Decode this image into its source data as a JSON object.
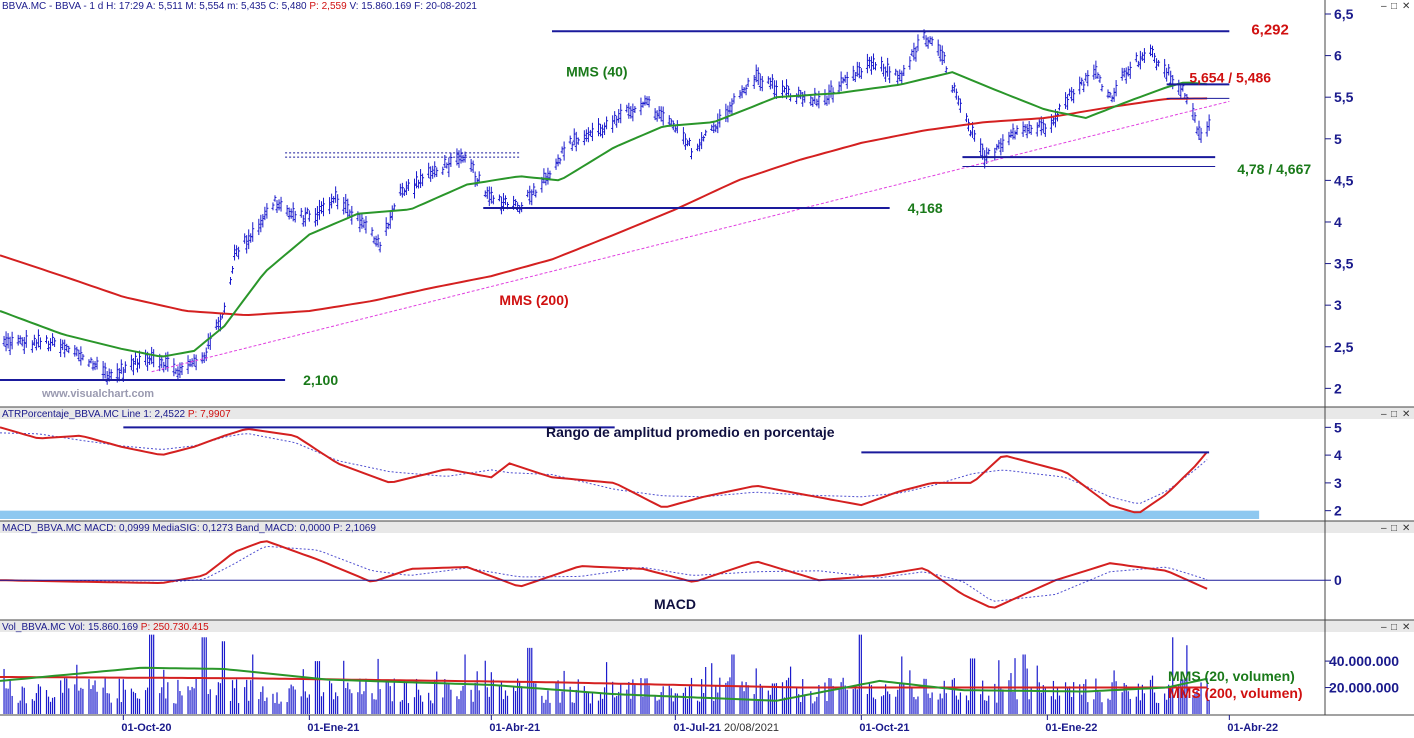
{
  "panels": {
    "price": {
      "header": "BBVA.MC - BBVA - 1 d H: 17:29 A: 5,511 M: 5,554 m: 5,435 C: 5,480",
      "header_red": "P: 2,559",
      "header_tail": "V: 15.860.169 F: 20-08-2021",
      "watermark": "www.visualchart.com"
    },
    "atr": {
      "header": "ATRPorcentaje_BBVA.MC Line 1: 2,4522",
      "header_red": "P: 7,9907",
      "title": "Rango de amplitud promedio en porcentaje"
    },
    "macd": {
      "header": "MACD_BBVA.MC MACD: 0,0999 MediaSIG: 0,1273 Band_MACD: 0,0000 P: 2,1069",
      "title": "MACD"
    },
    "volume": {
      "header": "Vol_BBVA.MC Vol: 15.860.169",
      "header_red": "P: 250.730.415"
    }
  },
  "window_buttons": [
    "–",
    "□",
    "✕"
  ],
  "colors": {
    "bars": "#1a1acc",
    "mms40": "#2a962a",
    "mms200": "#d42020",
    "trendline": "#e040e0",
    "levels": "#1a1a9c",
    "atr_band": "#8ec8f0"
  },
  "chart_data": [
    {
      "type": "ohlc",
      "series": [
        {
          "name": "BBVA.MC"
        },
        {
          "name": "MMS (40)"
        },
        {
          "name": "MMS (200)"
        }
      ],
      "ylim": [
        1.8,
        6.5
      ],
      "y_ticks": [
        "6,5",
        "6",
        "5,5",
        "5",
        "4,5",
        "4",
        "3,5",
        "3",
        "2,5",
        "2"
      ],
      "y_tick_values": [
        6.5,
        6,
        5.5,
        5,
        4.5,
        4,
        3.5,
        3,
        2.5,
        2
      ],
      "x_ticks": [
        "01-Oct-20",
        "01-Ene-21",
        "01-Abr-21",
        "01-Jul-21",
        "01-Oct-21",
        "01-Ene-22",
        "01-Abr-22"
      ],
      "cursor_date": "20/08/2021",
      "price_path": [
        [
          "2020-08-01",
          2.55
        ],
        [
          "2020-08-25",
          2.55
        ],
        [
          "2020-09-10",
          2.4
        ],
        [
          "2020-09-25",
          2.15
        ],
        [
          "2020-10-15",
          2.4
        ],
        [
          "2020-10-29",
          2.2
        ],
        [
          "2020-11-10",
          2.4
        ],
        [
          "2020-11-20",
          2.95
        ],
        [
          "2020-11-25",
          3.6
        ],
        [
          "2020-12-05",
          3.9
        ],
        [
          "2020-12-15",
          4.25
        ],
        [
          "2020-12-25",
          4.05
        ],
        [
          "2021-01-05",
          4.1
        ],
        [
          "2021-01-15",
          4.3
        ],
        [
          "2021-01-30",
          3.9
        ],
        [
          "2021-02-05",
          3.75
        ],
        [
          "2021-02-15",
          4.35
        ],
        [
          "2021-03-10",
          4.7
        ],
        [
          "2021-03-20",
          4.75
        ],
        [
          "2021-03-30",
          4.3
        ],
        [
          "2021-04-15",
          4.2
        ],
        [
          "2021-04-25",
          4.45
        ],
        [
          "2021-05-10",
          4.95
        ],
        [
          "2021-06-01",
          5.2
        ],
        [
          "2021-06-15",
          5.45
        ],
        [
          "2021-06-30",
          5.15
        ],
        [
          "2021-07-10",
          4.85
        ],
        [
          "2021-07-20",
          5.15
        ],
        [
          "2021-08-10",
          5.75
        ],
        [
          "2021-08-25",
          5.55
        ],
        [
          "2021-09-10",
          5.45
        ],
        [
          "2021-09-25",
          5.7
        ],
        [
          "2021-10-05",
          5.9
        ],
        [
          "2021-10-20",
          5.75
        ],
        [
          "2021-11-01",
          6.22
        ],
        [
          "2021-11-10",
          6.0
        ],
        [
          "2021-11-20",
          5.3
        ],
        [
          "2021-12-01",
          4.75
        ],
        [
          "2021-12-15",
          5.1
        ],
        [
          "2021-12-31",
          5.15
        ],
        [
          "2022-01-15",
          5.6
        ],
        [
          "2022-01-25",
          5.8
        ],
        [
          "2022-02-01",
          5.5
        ],
        [
          "2022-02-10",
          5.85
        ],
        [
          "2022-02-20",
          6.05
        ],
        [
          "2022-03-01",
          5.8
        ],
        [
          "2022-03-10",
          5.55
        ],
        [
          "2022-03-18",
          5.0
        ],
        [
          "2022-03-22",
          5.2
        ]
      ],
      "mms40_path": [
        [
          "2020-08-01",
          2.93
        ],
        [
          "2020-09-01",
          2.65
        ],
        [
          "2020-10-01",
          2.47
        ],
        [
          "2020-10-20",
          2.38
        ],
        [
          "2020-11-05",
          2.45
        ],
        [
          "2020-11-20",
          2.75
        ],
        [
          "2020-12-10",
          3.4
        ],
        [
          "2021-01-01",
          3.85
        ],
        [
          "2021-01-25",
          4.1
        ],
        [
          "2021-02-20",
          4.15
        ],
        [
          "2021-03-20",
          4.45
        ],
        [
          "2021-04-15",
          4.55
        ],
        [
          "2021-05-05",
          4.5
        ],
        [
          "2021-06-01",
          4.9
        ],
        [
          "2021-06-25",
          5.15
        ],
        [
          "2021-07-20",
          5.2
        ],
        [
          "2021-08-20",
          5.5
        ],
        [
          "2021-09-20",
          5.55
        ],
        [
          "2021-10-20",
          5.65
        ],
        [
          "2021-11-15",
          5.8
        ],
        [
          "2021-12-05",
          5.6
        ],
        [
          "2021-12-31",
          5.35
        ],
        [
          "2022-01-20",
          5.25
        ],
        [
          "2022-02-10",
          5.45
        ],
        [
          "2022-03-01",
          5.62
        ],
        [
          "2022-03-10",
          5.68
        ],
        [
          "2022-03-22",
          5.654
        ]
      ],
      "mms200_path": [
        [
          "2020-08-01",
          3.6
        ],
        [
          "2020-09-01",
          3.35
        ],
        [
          "2020-10-01",
          3.1
        ],
        [
          "2020-11-01",
          2.93
        ],
        [
          "2020-12-01",
          2.88
        ],
        [
          "2021-01-01",
          2.93
        ],
        [
          "2021-02-01",
          3.05
        ],
        [
          "2021-03-01",
          3.2
        ],
        [
          "2021-04-01",
          3.35
        ],
        [
          "2021-05-01",
          3.55
        ],
        [
          "2021-06-01",
          3.85
        ],
        [
          "2021-07-01",
          4.15
        ],
        [
          "2021-08-01",
          4.5
        ],
        [
          "2021-09-01",
          4.75
        ],
        [
          "2021-10-01",
          4.95
        ],
        [
          "2021-11-01",
          5.1
        ],
        [
          "2021-12-01",
          5.2
        ],
        [
          "2021-12-31",
          5.25
        ],
        [
          "2022-02-01",
          5.38
        ],
        [
          "2022-03-01",
          5.48
        ],
        [
          "2022-03-22",
          5.486
        ]
      ],
      "trendline": [
        [
          "2020-10-15",
          2.2
        ],
        [
          "2022-04-01",
          5.45
        ]
      ],
      "levels": [
        {
          "label": "6,292",
          "value": 6.292,
          "from": "2021-05-01",
          "to": "2022-04-01",
          "color": "red"
        },
        {
          "label": "5,654 / 5,486",
          "value": 5.654,
          "value2": 5.486,
          "from": "2022-03-01",
          "to": "2022-04-01",
          "color": "red"
        },
        {
          "label": "4,78 / 4,667",
          "value": 4.78,
          "value2": 4.667,
          "from": "2021-11-20",
          "to": "2022-03-25",
          "color": "green"
        },
        {
          "label": "4,168",
          "value": 4.168,
          "from": "2021-03-28",
          "to": "2021-10-15",
          "color": "green"
        },
        {
          "label": "2,100",
          "value": 2.1,
          "from": "2020-08-01",
          "to": "2020-12-20",
          "color": "green"
        }
      ],
      "band": {
        "values": [
          4.78,
          4.83
        ],
        "from": "2020-12-20",
        "to": "2021-04-15"
      },
      "annotations": [
        {
          "text": "MMS (40)",
          "color": "green",
          "date": "2021-05-08",
          "value": 5.75
        },
        {
          "text": "MMS (200)",
          "color": "red",
          "date": "2021-04-05",
          "value": 3.0
        }
      ]
    },
    {
      "type": "line",
      "series": [
        {
          "name": "ATRPorcentaje_BBVA.MC"
        }
      ],
      "ylim": [
        1.7,
        5.3
      ],
      "y_ticks": [
        "5",
        "4",
        "3",
        "2"
      ],
      "y_tick_values": [
        5,
        4,
        3,
        2
      ],
      "atr_path": [
        [
          "2020-08-01",
          5.0
        ],
        [
          "2020-08-20",
          4.6
        ],
        [
          "2020-09-10",
          4.7
        ],
        [
          "2020-09-30",
          4.3
        ],
        [
          "2020-10-20",
          4.0
        ],
        [
          "2020-11-05",
          4.3
        ],
        [
          "2020-11-20",
          4.7
        ],
        [
          "2020-12-01",
          4.95
        ],
        [
          "2020-12-25",
          4.7
        ],
        [
          "2021-01-15",
          3.7
        ],
        [
          "2021-02-10",
          3.0
        ],
        [
          "2021-03-10",
          3.5
        ],
        [
          "2021-04-01",
          3.2
        ],
        [
          "2021-04-10",
          3.7
        ],
        [
          "2021-05-01",
          3.2
        ],
        [
          "2021-06-01",
          3.0
        ],
        [
          "2021-06-25",
          2.1
        ],
        [
          "2021-07-15",
          2.5
        ],
        [
          "2021-08-10",
          2.9
        ],
        [
          "2021-09-01",
          2.6
        ],
        [
          "2021-10-01",
          2.2
        ],
        [
          "2021-10-20",
          2.7
        ],
        [
          "2021-11-05",
          3.0
        ],
        [
          "2021-11-25",
          3.0
        ],
        [
          "2021-12-10",
          4.0
        ],
        [
          "2022-01-10",
          3.4
        ],
        [
          "2022-02-01",
          2.2
        ],
        [
          "2022-02-15",
          1.9
        ],
        [
          "2022-03-01",
          2.6
        ],
        [
          "2022-03-15",
          3.6
        ],
        [
          "2022-03-22",
          4.2
        ]
      ],
      "levels": [
        {
          "value": 5.0,
          "from": "2020-10-01",
          "to": "2021-06-01"
        },
        {
          "value": 4.1,
          "from": "2021-10-01",
          "to": "2022-03-22"
        }
      ],
      "band": {
        "values": [
          1.7,
          2.0
        ]
      }
    },
    {
      "type": "line",
      "series": [
        {
          "name": "MACD"
        },
        {
          "name": "MediaSIG"
        }
      ],
      "ylim": [
        -0.4,
        0.5
      ],
      "y_ticks": [
        "0"
      ],
      "y_tick_values": [
        0
      ],
      "macd_path": [
        [
          "2020-08-01",
          0.0
        ],
        [
          "2020-09-20",
          -0.02
        ],
        [
          "2020-10-20",
          -0.03
        ],
        [
          "2020-11-10",
          0.05
        ],
        [
          "2020-11-25",
          0.3
        ],
        [
          "2020-12-10",
          0.42
        ],
        [
          "2021-01-05",
          0.22
        ],
        [
          "2021-02-01",
          -0.02
        ],
        [
          "2021-02-20",
          0.12
        ],
        [
          "2021-03-20",
          0.14
        ],
        [
          "2021-04-15",
          -0.07
        ],
        [
          "2021-05-15",
          0.15
        ],
        [
          "2021-06-15",
          0.12
        ],
        [
          "2021-07-10",
          -0.02
        ],
        [
          "2021-08-10",
          0.2
        ],
        [
          "2021-09-10",
          0.0
        ],
        [
          "2021-10-10",
          0.05
        ],
        [
          "2021-11-01",
          0.13
        ],
        [
          "2021-11-20",
          -0.15
        ],
        [
          "2021-12-05",
          -0.3
        ],
        [
          "2022-01-05",
          0.0
        ],
        [
          "2022-02-01",
          0.18
        ],
        [
          "2022-03-01",
          0.1
        ],
        [
          "2022-03-22",
          -0.1
        ]
      ]
    },
    {
      "type": "bar",
      "series": [
        {
          "name": "Vol_BBVA.MC"
        },
        {
          "name": "MMS (20, volumen)"
        },
        {
          "name": "MMS (200, volumen)"
        }
      ],
      "ylim": [
        0,
        62000000
      ],
      "y_ticks": [
        "40.000.000",
        "20.000.000"
      ],
      "y_tick_values": [
        40000000,
        20000000
      ],
      "vol_base": 22000000,
      "vol_spikes": [
        [
          "2020-10-15",
          60000000
        ],
        [
          "2020-11-10",
          58000000
        ],
        [
          "2020-11-20",
          55000000
        ],
        [
          "2020-12-05",
          45000000
        ],
        [
          "2021-01-05",
          40000000
        ],
        [
          "2021-03-20",
          45000000
        ],
        [
          "2021-04-20",
          50000000
        ],
        [
          "2021-07-30",
          45000000
        ],
        [
          "2021-10-01",
          60000000
        ],
        [
          "2021-11-25",
          42000000
        ],
        [
          "2021-12-20",
          45000000
        ],
        [
          "2022-03-05",
          58000000
        ],
        [
          "2022-03-12",
          52000000
        ]
      ],
      "mms20_path": [
        [
          "2020-08-01",
          25000000
        ],
        [
          "2020-10-10",
          35000000
        ],
        [
          "2020-11-20",
          34000000
        ],
        [
          "2021-01-10",
          26000000
        ],
        [
          "2021-04-01",
          22000000
        ],
        [
          "2021-06-01",
          15000000
        ],
        [
          "2021-08-20",
          10000000
        ],
        [
          "2021-10-10",
          25000000
        ],
        [
          "2021-11-20",
          18000000
        ],
        [
          "2022-01-20",
          17000000
        ],
        [
          "2022-03-01",
          20000000
        ],
        [
          "2022-03-22",
          27000000
        ]
      ],
      "mms200_path": [
        [
          "2020-08-01",
          28000000
        ],
        [
          "2020-12-01",
          27000000
        ],
        [
          "2021-05-01",
          24000000
        ],
        [
          "2021-09-01",
          20000000
        ],
        [
          "2022-01-01",
          20000000
        ],
        [
          "2022-03-22",
          20000000
        ]
      ],
      "annotations": [
        {
          "text": "MMS (20, volumen)",
          "color": "green"
        },
        {
          "text": "MMS (200, volumen)",
          "color": "red"
        }
      ]
    }
  ]
}
